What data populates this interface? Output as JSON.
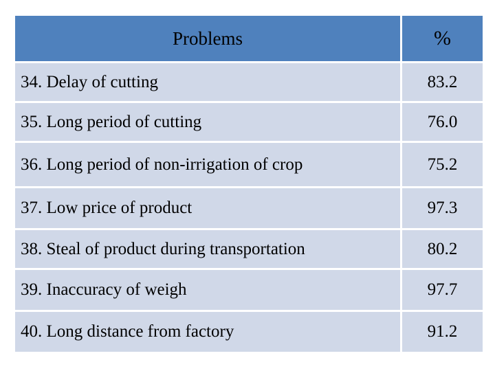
{
  "table": {
    "header": {
      "problem": "Problems",
      "percent": "%"
    },
    "rows": [
      {
        "problem": "34. Delay of cutting",
        "percent": "83.2"
      },
      {
        "problem": "35. Long period of cutting",
        "percent": "76.0"
      },
      {
        "problem": "36. Long period of non-irrigation of crop",
        "percent": "75.2"
      },
      {
        "problem": "37. Low price of product",
        "percent": "97.3"
      },
      {
        "problem": "38. Steal of product during  transportation",
        "percent": "80.2"
      },
      {
        "problem": "39. Inaccuracy of weigh",
        "percent": "97.7"
      },
      {
        "problem": "40. Long distance from factory",
        "percent": "91.2"
      }
    ]
  },
  "colors": {
    "header_background": "#4f81bd",
    "row_background": "#d0d8e8"
  }
}
